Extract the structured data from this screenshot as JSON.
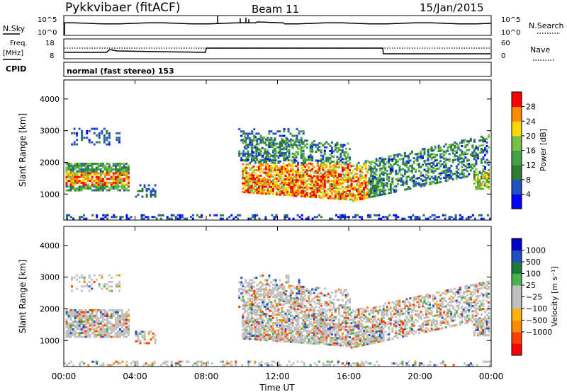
{
  "header": {
    "radar": "Pykkvibaer (fitACF)",
    "beam": "Beam 11",
    "date": "15/Jan/2015"
  },
  "status_panels": {
    "nsky_label": "N.Sky",
    "nsky_ticks": [
      "10^5",
      "10^0"
    ],
    "nsearch_label": "N.Search",
    "nsearch_ticks": [
      "10^5",
      "10^0"
    ],
    "freq_label": "Freq.",
    "freq_unit": "[MHz]",
    "freq_ticks": [
      "18",
      "8"
    ],
    "nave_label": "Nave",
    "nave_ticks": [
      "60",
      "0"
    ],
    "cpid_label": "CPID",
    "cpid_text": "normal (fast stereo) 153"
  },
  "chart_data": [
    {
      "type": "heatmap",
      "panel": "power",
      "xlabel": "",
      "ylabel": "Slant Range [km]",
      "yticks": [
        1000,
        2000,
        3000,
        4000
      ],
      "ylim": [
        180,
        4600
      ],
      "xlim": [
        0,
        24
      ],
      "x_tick_labels": [
        "00:00",
        "04:00",
        "08:00",
        "12:00",
        "16:00",
        "20:00",
        "00:00"
      ],
      "colorbar": {
        "label": "Power [dB]",
        "tick_labels": [
          "28",
          "24",
          "20",
          "16",
          "12",
          "8",
          "4"
        ],
        "colors": [
          "#0000ff",
          "#2050c0",
          "#2e7d32",
          "#43a047",
          "#76c043",
          "#ffd700",
          "#ff8c00",
          "#ff0000"
        ]
      }
    },
    {
      "type": "heatmap",
      "panel": "velocity",
      "xlabel": "Time UT",
      "ylabel": "Slant Range [km]",
      "yticks": [
        1000,
        2000,
        3000,
        4000
      ],
      "ylim": [
        180,
        4600
      ],
      "xlim": [
        0,
        24
      ],
      "x_tick_labels": [
        "00:00",
        "04:00",
        "08:00",
        "12:00",
        "16:00",
        "20:00",
        "00:00"
      ],
      "colorbar": {
        "label": "Velocity [m s⁻¹]",
        "tick_labels": [
          "1000",
          "500",
          "100",
          "25",
          "−25",
          "−100",
          "−500",
          "−1000"
        ],
        "colors": [
          "#ff0000",
          "#ff4000",
          "#ff8c00",
          "#ffb000",
          "#c0c0c0",
          "#c0c0c0",
          "#4caf50",
          "#1e7a3c",
          "#2050c0",
          "#0000c8"
        ]
      }
    }
  ]
}
